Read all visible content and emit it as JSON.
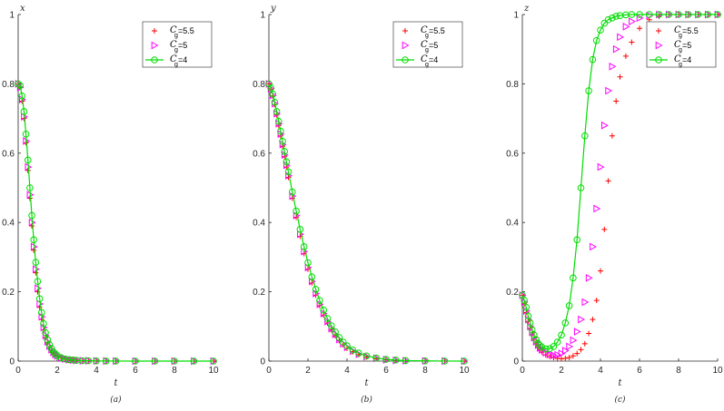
{
  "chart_data": [
    {
      "type": "line",
      "caption": "(a)",
      "xlabel": "t",
      "ylabel": "x",
      "xlim": [
        0,
        10
      ],
      "ylim": [
        0,
        1
      ],
      "xticks": [
        "0",
        "2",
        "4",
        "6",
        "8",
        "10"
      ],
      "yticks": [
        "0",
        "0.2",
        "0.4",
        "0.6",
        "0.8",
        "1"
      ],
      "legend_position": "top-right",
      "x": [
        0,
        0.1,
        0.2,
        0.3,
        0.4,
        0.5,
        0.6,
        0.7,
        0.8,
        0.9,
        1.0,
        1.1,
        1.2,
        1.3,
        1.4,
        1.5,
        1.6,
        1.7,
        1.8,
        1.9,
        2.0,
        2.2,
        2.4,
        2.6,
        2.8,
        3.0,
        3.3,
        3.6,
        4.0,
        4.5,
        5,
        6,
        7,
        8,
        9,
        10
      ],
      "series": [
        {
          "name_prefix": "C",
          "name_sub": "g",
          "name_value": "=5.5",
          "marker": "plus",
          "color": "#ff0000",
          "values": [
            0.8,
            0.79,
            0.75,
            0.7,
            0.63,
            0.55,
            0.47,
            0.39,
            0.32,
            0.255,
            0.2,
            0.155,
            0.12,
            0.09,
            0.068,
            0.052,
            0.04,
            0.031,
            0.024,
            0.018,
            0.014,
            0.009,
            0.006,
            0.004,
            0.003,
            0.002,
            0.001,
            0.001,
            0.0005,
            0.0003,
            0.0002,
            0,
            0,
            0,
            0,
            0
          ]
        },
        {
          "name_prefix": "C",
          "name_sub": "g",
          "name_value": "=5",
          "marker": "triangle",
          "color": "#ff00ff",
          "values": [
            0.8,
            0.79,
            0.755,
            0.705,
            0.635,
            0.56,
            0.48,
            0.4,
            0.33,
            0.265,
            0.21,
            0.165,
            0.128,
            0.097,
            0.074,
            0.056,
            0.043,
            0.033,
            0.025,
            0.019,
            0.015,
            0.009,
            0.006,
            0.004,
            0.003,
            0.002,
            0.001,
            0.001,
            0.0005,
            0.0003,
            0.0002,
            0,
            0,
            0,
            0,
            0
          ]
        },
        {
          "name_prefix": "C",
          "name_sub": "g",
          "name_value": "=4",
          "marker": "circle-line",
          "color": "#00dd00",
          "values": [
            0.8,
            0.795,
            0.765,
            0.72,
            0.655,
            0.58,
            0.5,
            0.42,
            0.35,
            0.285,
            0.23,
            0.18,
            0.14,
            0.108,
            0.082,
            0.062,
            0.047,
            0.036,
            0.027,
            0.021,
            0.016,
            0.01,
            0.006,
            0.004,
            0.003,
            0.002,
            0.001,
            0.001,
            0.0005,
            0.0003,
            0.0002,
            0,
            0,
            0,
            0,
            0
          ]
        }
      ]
    },
    {
      "type": "line",
      "caption": "(b)",
      "xlabel": "t",
      "ylabel": "y",
      "xlim": [
        0,
        10
      ],
      "ylim": [
        0,
        1
      ],
      "xticks": [
        "0",
        "2",
        "4",
        "6",
        "8",
        "10"
      ],
      "yticks": [
        "0",
        "0.2",
        "0.4",
        "0.6",
        "0.8",
        "1"
      ],
      "legend_position": "top-right",
      "x": [
        0,
        0.1,
        0.2,
        0.3,
        0.4,
        0.5,
        0.6,
        0.7,
        0.8,
        0.9,
        1.0,
        1.2,
        1.4,
        1.6,
        1.8,
        2.0,
        2.2,
        2.4,
        2.6,
        2.8,
        3.0,
        3.2,
        3.4,
        3.6,
        3.8,
        4.0,
        4.3,
        4.6,
        5.0,
        5.5,
        6,
        6.5,
        7,
        8,
        9,
        10
      ],
      "series": [
        {
          "name_prefix": "C",
          "name_sub": "g",
          "name_value": "=5.5",
          "marker": "plus",
          "color": "#ff0000",
          "values": [
            0.8,
            0.785,
            0.765,
            0.74,
            0.71,
            0.68,
            0.65,
            0.62,
            0.59,
            0.56,
            0.53,
            0.47,
            0.415,
            0.36,
            0.31,
            0.265,
            0.225,
            0.19,
            0.16,
            0.133,
            0.11,
            0.09,
            0.073,
            0.059,
            0.047,
            0.037,
            0.027,
            0.019,
            0.012,
            0.007,
            0.004,
            0.002,
            0.001,
            0.0005,
            0.0002,
            0
          ]
        },
        {
          "name_prefix": "C",
          "name_sub": "g",
          "name_value": "=5",
          "marker": "triangle",
          "color": "#ff00ff",
          "values": [
            0.8,
            0.786,
            0.767,
            0.743,
            0.714,
            0.685,
            0.655,
            0.625,
            0.595,
            0.565,
            0.535,
            0.476,
            0.42,
            0.366,
            0.316,
            0.27,
            0.23,
            0.195,
            0.164,
            0.137,
            0.114,
            0.094,
            0.077,
            0.062,
            0.05,
            0.04,
            0.029,
            0.02,
            0.013,
            0.008,
            0.004,
            0.002,
            0.001,
            0.0005,
            0.0002,
            0
          ]
        },
        {
          "name_prefix": "C",
          "name_sub": "g",
          "name_value": "=4",
          "marker": "circle-line",
          "color": "#00dd00",
          "values": [
            0.8,
            0.788,
            0.77,
            0.747,
            0.72,
            0.692,
            0.663,
            0.634,
            0.605,
            0.575,
            0.546,
            0.488,
            0.433,
            0.38,
            0.33,
            0.284,
            0.243,
            0.207,
            0.175,
            0.147,
            0.123,
            0.102,
            0.084,
            0.068,
            0.055,
            0.044,
            0.032,
            0.023,
            0.015,
            0.009,
            0.005,
            0.003,
            0.0015,
            0.0006,
            0.0002,
            0
          ]
        }
      ]
    },
    {
      "type": "line",
      "caption": "(c)",
      "xlabel": "t",
      "ylabel": "z",
      "xlim": [
        0,
        10
      ],
      "ylim": [
        0,
        1
      ],
      "xticks": [
        "0",
        "2",
        "4",
        "6",
        "8",
        "10"
      ],
      "yticks": [
        "0",
        "0.2",
        "0.4",
        "0.6",
        "0.8",
        "1"
      ],
      "legend_position": "top-right",
      "x": [
        0,
        0.1,
        0.2,
        0.3,
        0.4,
        0.5,
        0.6,
        0.7,
        0.8,
        0.9,
        1.0,
        1.2,
        1.4,
        1.6,
        1.8,
        2.0,
        2.2,
        2.4,
        2.6,
        2.8,
        3.0,
        3.2,
        3.4,
        3.6,
        3.8,
        4.0,
        4.2,
        4.4,
        4.6,
        4.8,
        5.0,
        5.3,
        5.6,
        6.0,
        6.5,
        7,
        7.5,
        8,
        8.5,
        9,
        9.5,
        10
      ],
      "series": [
        {
          "name_prefix": "C",
          "name_sub": "g",
          "name_value": "=5.5",
          "marker": "plus",
          "color": "#ff0000",
          "values": [
            0.19,
            0.165,
            0.14,
            0.115,
            0.095,
            0.078,
            0.063,
            0.05,
            0.04,
            0.032,
            0.026,
            0.018,
            0.013,
            0.01,
            0.008,
            0.007,
            0.008,
            0.01,
            0.015,
            0.022,
            0.033,
            0.05,
            0.08,
            0.12,
            0.175,
            0.26,
            0.38,
            0.52,
            0.65,
            0.75,
            0.82,
            0.88,
            0.92,
            0.96,
            0.985,
            0.995,
            1.0,
            1.0,
            1.0,
            1.0,
            1.0,
            1.0
          ]
        },
        {
          "name_prefix": "C",
          "name_sub": "g",
          "name_value": "=5",
          "marker": "triangle",
          "color": "#ff00ff",
          "values": [
            0.19,
            0.17,
            0.145,
            0.12,
            0.1,
            0.083,
            0.068,
            0.056,
            0.046,
            0.038,
            0.032,
            0.024,
            0.019,
            0.017,
            0.018,
            0.022,
            0.03,
            0.042,
            0.06,
            0.085,
            0.12,
            0.17,
            0.24,
            0.33,
            0.44,
            0.56,
            0.68,
            0.78,
            0.85,
            0.9,
            0.935,
            0.965,
            0.98,
            0.99,
            0.997,
            1.0,
            1.0,
            1.0,
            1.0,
            1.0,
            1.0,
            1.0
          ]
        },
        {
          "name_prefix": "C",
          "name_sub": "g",
          "name_value": "=4",
          "marker": "circle-line",
          "color": "#00dd00",
          "values": [
            0.19,
            0.175,
            0.155,
            0.13,
            0.11,
            0.09,
            0.075,
            0.062,
            0.052,
            0.045,
            0.04,
            0.035,
            0.036,
            0.042,
            0.055,
            0.075,
            0.11,
            0.16,
            0.24,
            0.35,
            0.5,
            0.65,
            0.78,
            0.87,
            0.925,
            0.955,
            0.975,
            0.985,
            0.99,
            0.995,
            0.997,
            0.999,
            1.0,
            1.0,
            1.0,
            1.0,
            1.0,
            1.0,
            1.0,
            1.0,
            1.0,
            1.0
          ]
        }
      ]
    }
  ]
}
